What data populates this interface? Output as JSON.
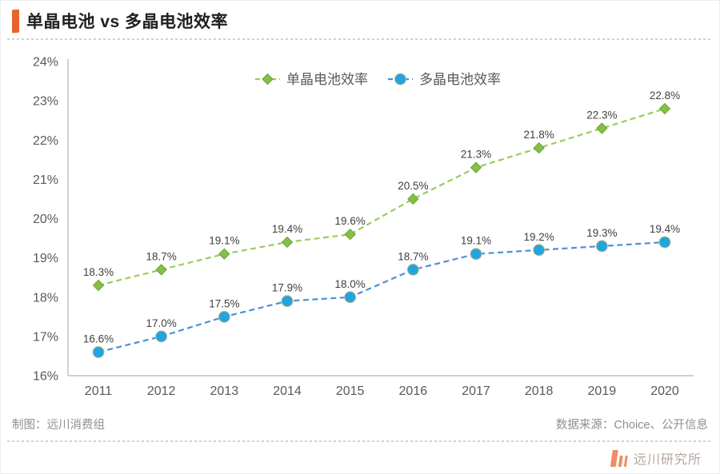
{
  "header": {
    "title": "单晶电池 vs 多晶电池效率"
  },
  "footer": {
    "left": "制图：远川消费组",
    "right": "数据来源：Choice、公开信息"
  },
  "logo": {
    "text": "远川研究所"
  },
  "colors": {
    "accent_orange": "#E8622D",
    "axis_line": "#BFBFBF",
    "tick_text": "#595959",
    "data_label_text": "#404040",
    "legend_text": "#595959",
    "footer_text": "#8F8F8F",
    "logo_salmon": "#EF8D65",
    "logo_text_gray": "#B4A6A0",
    "green_line": "#9CCB5C",
    "green_marker": "#84BF48",
    "green_marker_stroke": "#6FA437",
    "blue_line": "#4A90D9",
    "blue_marker": "#22A5DE",
    "blue_marker_stroke": "#C9BD92"
  },
  "chart_data": {
    "type": "line",
    "categories": [
      "2011",
      "2012",
      "2013",
      "2014",
      "2015",
      "2016",
      "2017",
      "2018",
      "2019",
      "2020"
    ],
    "series": [
      {
        "name": "单晶电池效率",
        "marker": "diamond",
        "values": [
          18.3,
          18.7,
          19.1,
          19.4,
          19.6,
          20.5,
          21.3,
          21.8,
          22.3,
          22.8
        ],
        "labels": [
          "18.3%",
          "18.7%",
          "19.1%",
          "19.4%",
          "19.6%",
          "20.5%",
          "21.3%",
          "21.8%",
          "22.3%",
          "22.8%"
        ]
      },
      {
        "name": "多晶电池效率",
        "marker": "circle",
        "values": [
          16.6,
          17.0,
          17.5,
          17.9,
          18.0,
          18.7,
          19.1,
          19.2,
          19.3,
          19.4
        ],
        "labels": [
          "16.6%",
          "17.0%",
          "17.5%",
          "17.9%",
          "18.0%",
          "18.7%",
          "19.1%",
          "19.2%",
          "19.3%",
          "19.4%"
        ]
      }
    ],
    "ylim": [
      16,
      24
    ],
    "yticks": [
      "16%",
      "17%",
      "18%",
      "19%",
      "20%",
      "21%",
      "22%",
      "23%",
      "24%"
    ],
    "xlabel": "",
    "ylabel": "",
    "grid": false,
    "legend_position": "top-center",
    "line_style": "dashed"
  }
}
